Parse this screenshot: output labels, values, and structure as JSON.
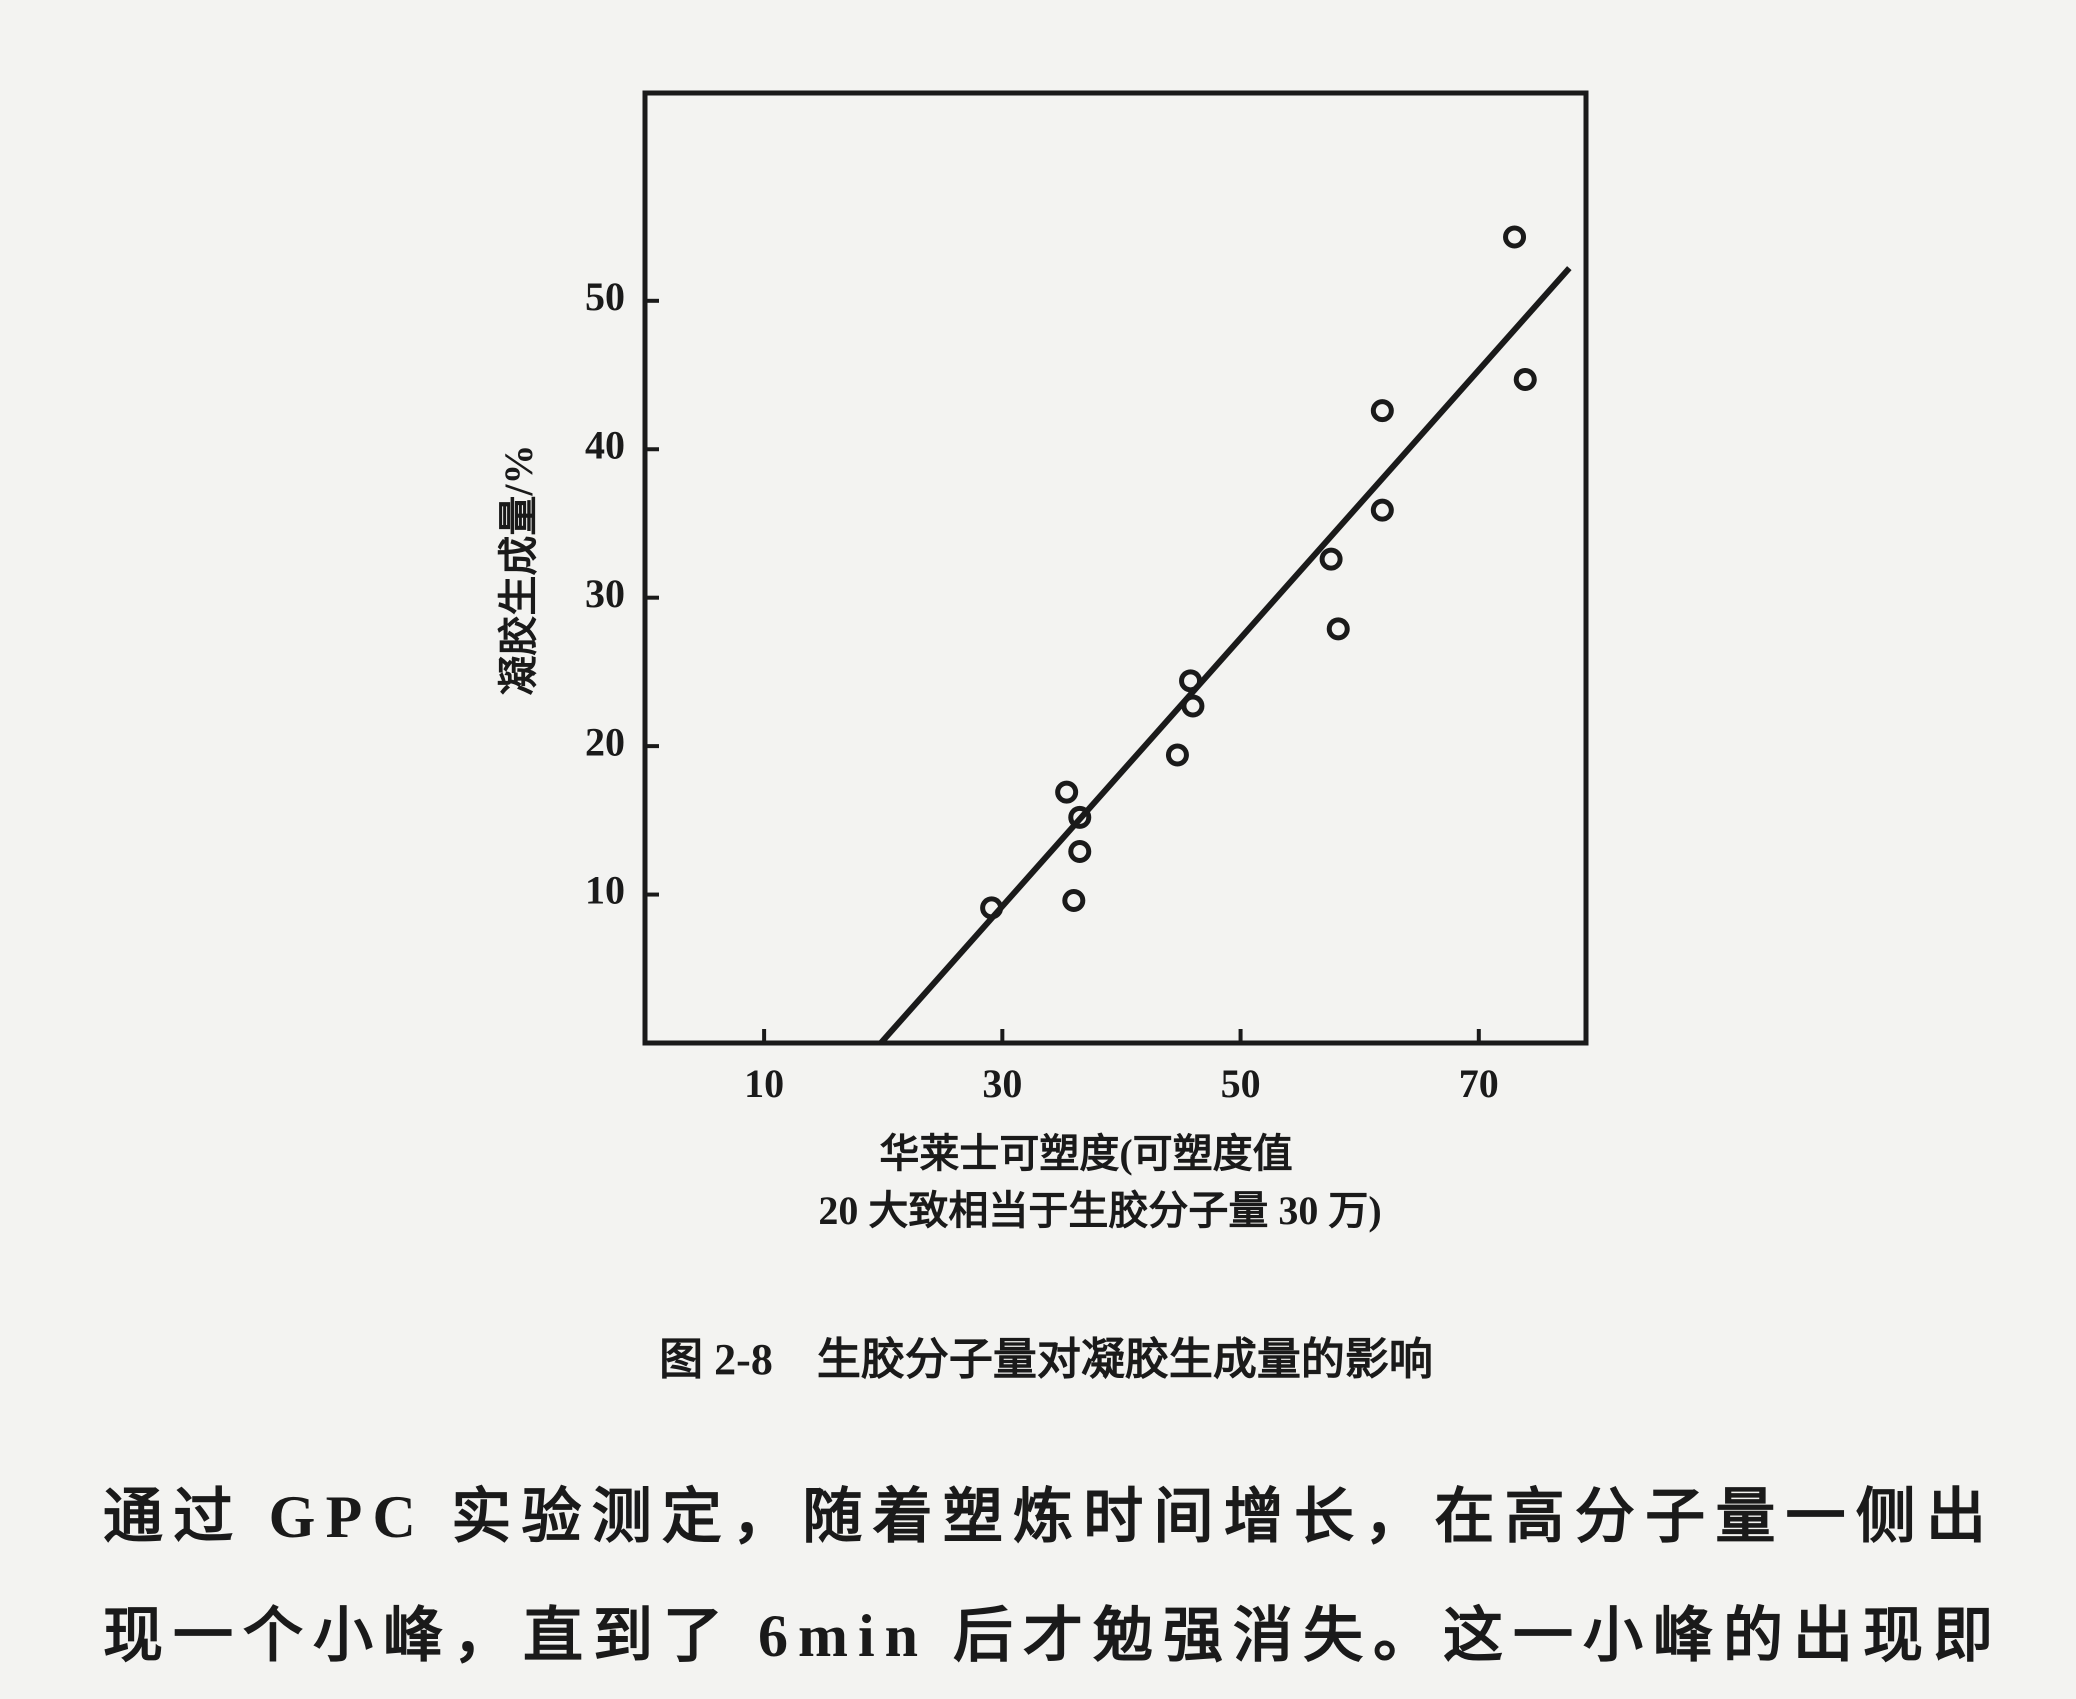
{
  "chart_data": {
    "type": "scatter",
    "ylabel": "凝胶生成量/%",
    "xlabel": [
      "华莱士可塑度(可塑度值",
      "20 大致相当于生胶分子量 30 万)"
    ],
    "xlim": [
      0,
      79
    ],
    "ylim": [
      0,
      64
    ],
    "xticks": [
      10,
      30,
      50,
      70
    ],
    "yticks": [
      10,
      20,
      30,
      40,
      50
    ],
    "color": "#1a1a1a",
    "series": [
      {
        "x": [
          29.1,
          35.4,
          36.5,
          36.5,
          36.0,
          44.7,
          45.8,
          46.0,
          57.6,
          58.2,
          61.9,
          61.9,
          73.0,
          73.9
        ],
        "values": [
          9.1,
          16.9,
          15.2,
          12.9,
          9.6,
          19.4,
          24.4,
          22.7,
          32.6,
          27.9,
          42.6,
          35.9,
          54.3,
          44.7
        ]
      }
    ],
    "fit_line": {
      "x": [
        19.8,
        77.6
      ],
      "values": [
        0,
        52.2
      ]
    }
  },
  "caption": "图 2-8　生胶分子量对凝胶生成量的影响",
  "body": [
    "通过 GPC 实验测定，随着塑炼时间增长，在高分子量一侧出",
    "现一个小峰，直到了 6min 后才勉强消失。这一小峰的出现即"
  ]
}
